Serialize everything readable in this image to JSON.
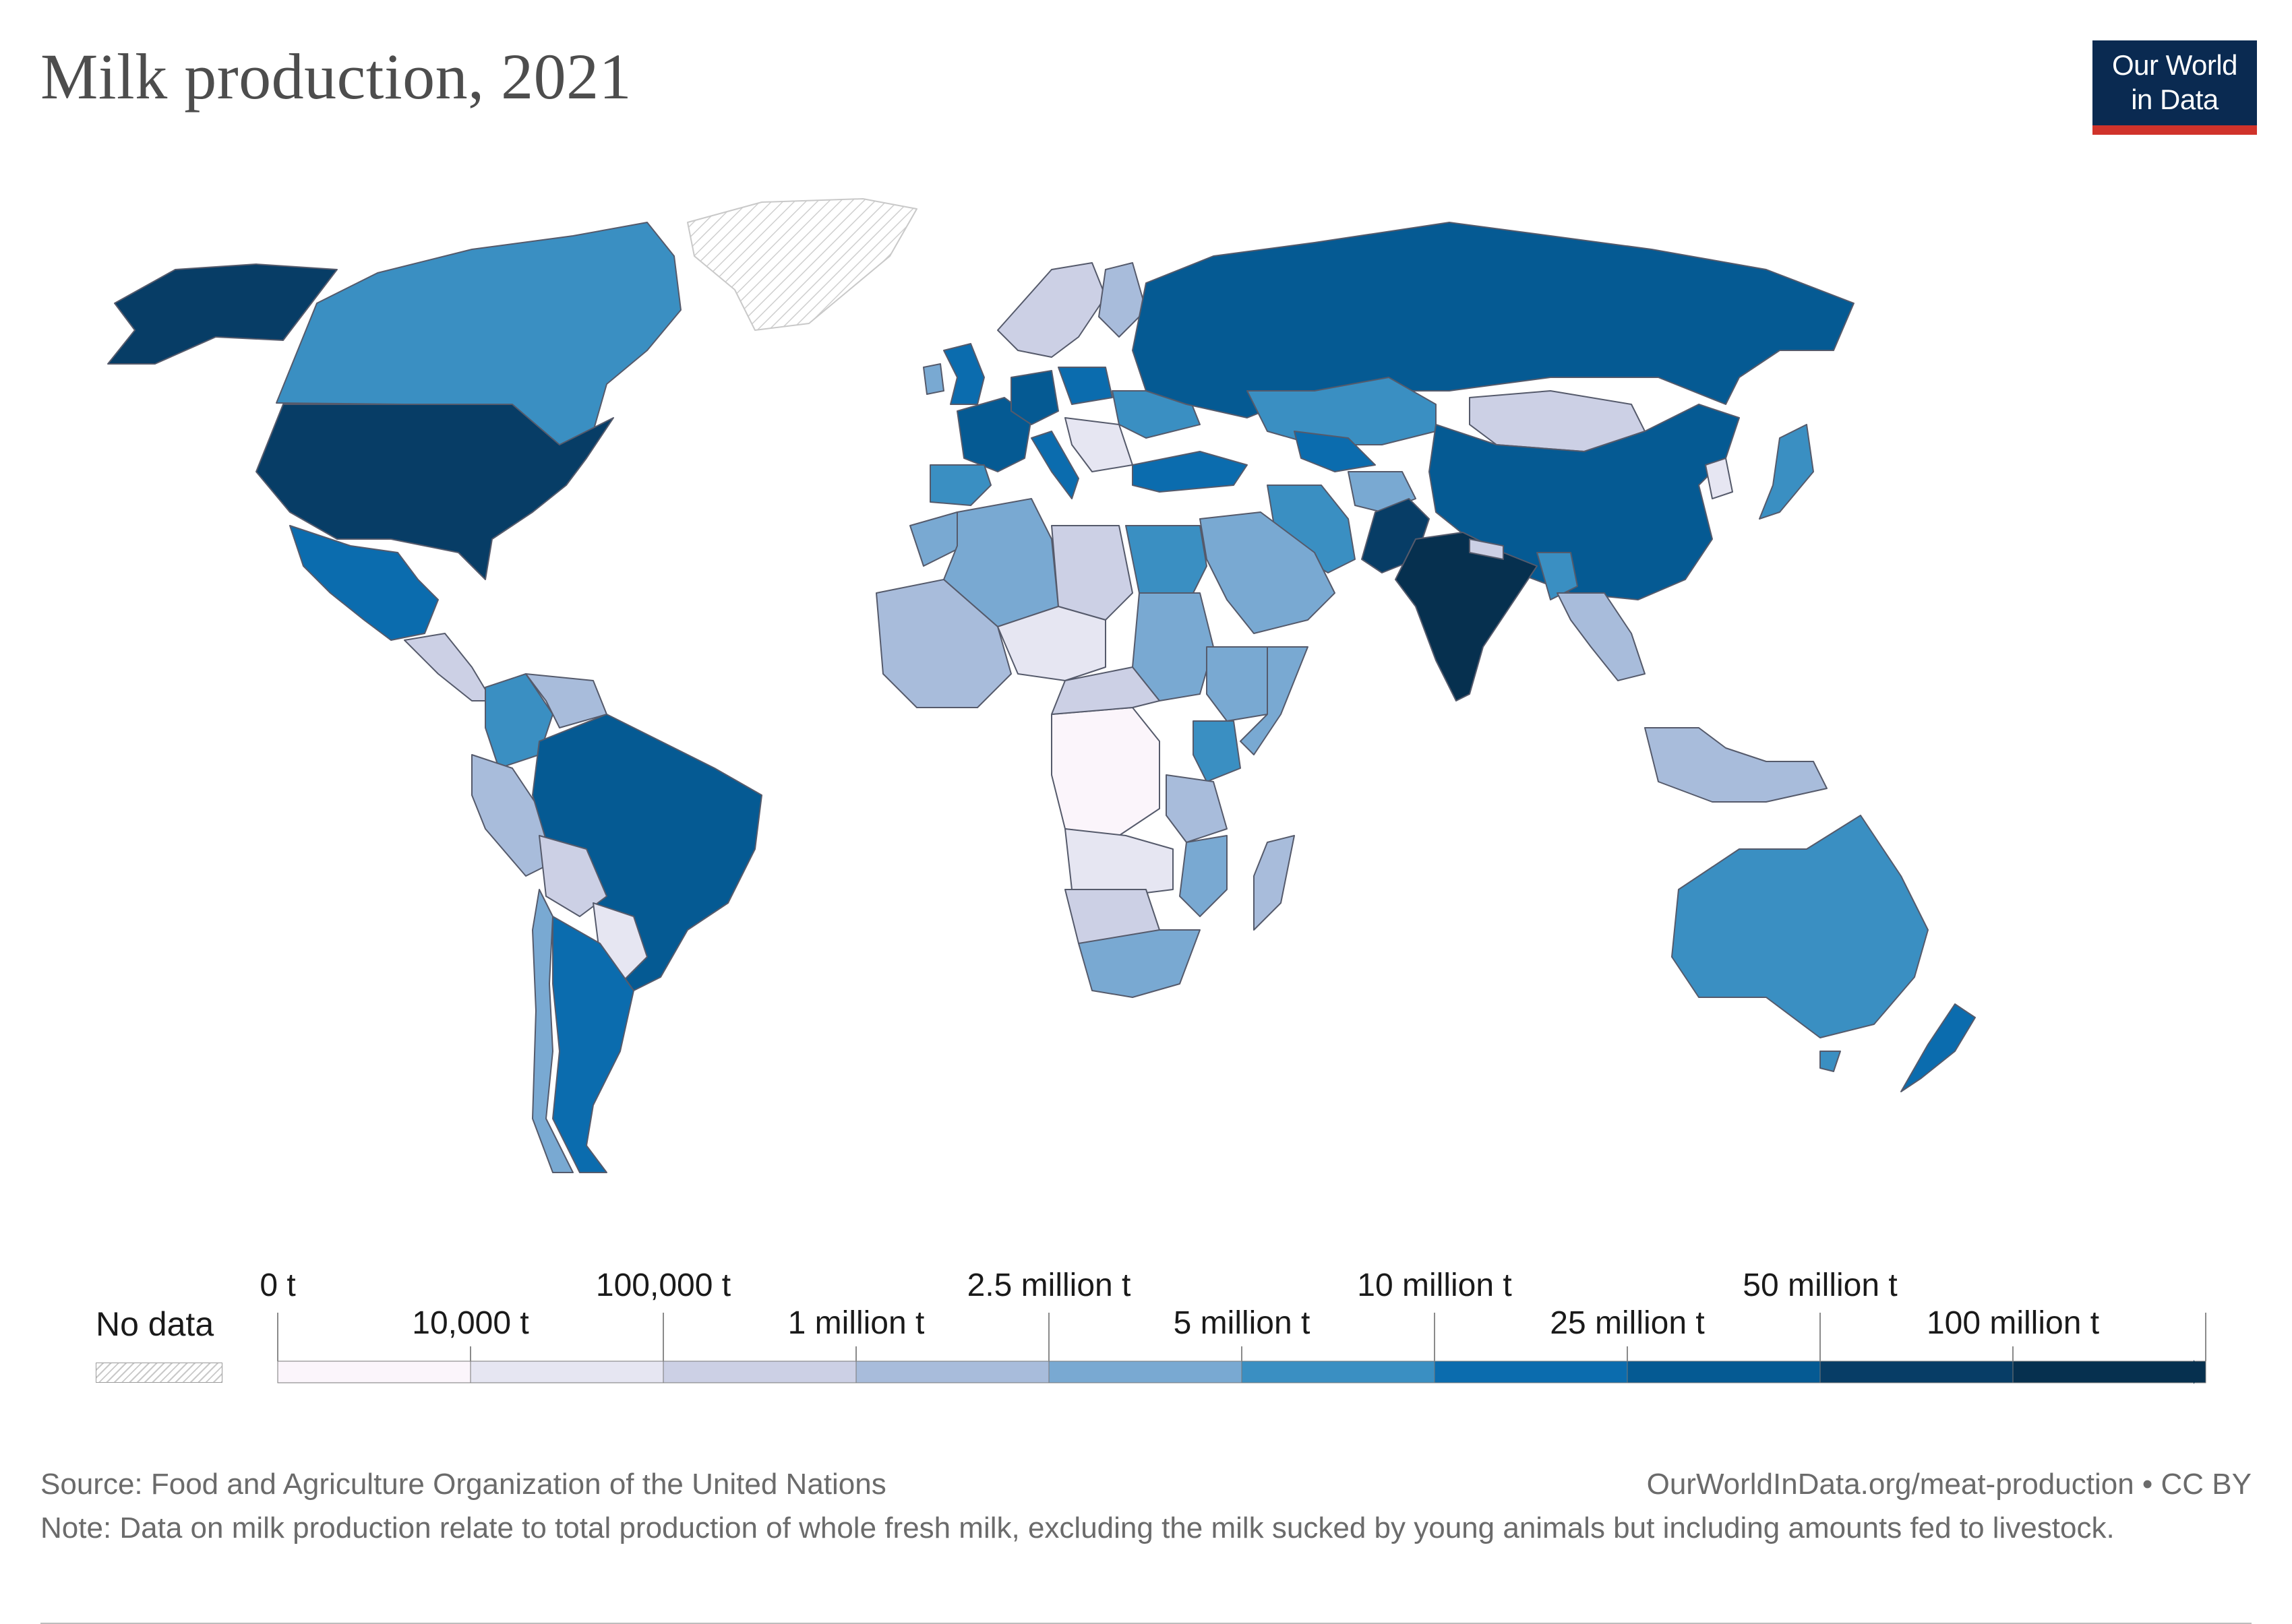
{
  "title": "Milk production, 2021",
  "logo": {
    "line1": "Our World",
    "line2": "in Data"
  },
  "legend": {
    "no_data_label": "No data",
    "upper_labels": [
      "0 t",
      "100,000 t",
      "2.5 million t",
      "10 million t",
      "50 million t"
    ],
    "lower_labels": [
      "10,000 t",
      "1 million t",
      "5 million t",
      "25 million t",
      "100 million t"
    ],
    "bins": [
      "#fbf5fb",
      "#e6e6f2",
      "#ccd0e5",
      "#a8bcdb",
      "#79a9d2",
      "#3a8fc2",
      "#0b6cae",
      "#055a93",
      "#073d66",
      "#06304f"
    ]
  },
  "source": "Source: Food and Agriculture Organization of the United Nations",
  "url": "OurWorldInData.org/meat-production • CC BY",
  "note": "Note: Data on milk production relate to total production of whole fresh milk, excluding the milk sucked by young animals but including amounts fed to livestock.",
  "map_data": {
    "United States": "50 million t – 100 million t",
    "Canada": "5 million t – 10 million t",
    "Alaska (US)": "50 million t – 100 million t",
    "Greenland": "No data",
    "Mexico": "10 million t – 25 million t",
    "Brazil": "25 million t – 50 million t",
    "Argentina": "10 million t – 25 million t",
    "Colombia": "5 million t – 10 million t",
    "Russia": "25 million t – 50 million t",
    "China": "25 million t – 50 million t",
    "India": "100 million t",
    "Pakistan": "50 million t – 100 million t",
    "Australia": "5 million t – 10 million t",
    "New Zealand": "10 million t – 25 million t",
    "Turkey": "10 million t – 25 million t",
    "Iran": "5 million t – 10 million t",
    "Kazakhstan": "5 million t – 10 million t",
    "Mongolia": "100,000 t – 1 million t",
    "Egypt": "5 million t – 10 million t",
    "Kenya": "5 million t – 10 million t",
    "Sudan": "2.5 million t – 5 million t",
    "Ethiopia": "2.5 million t – 5 million t",
    "Saudi Arabia": "2.5 million t – 5 million t",
    "Algeria": "2.5 million t – 5 million t",
    "South Africa": "2.5 million t – 5 million t",
    "DR Congo": "0 t – 10,000 t",
    "Japan": "5 million t – 10 million t",
    "Indonesia": "1 million t – 2.5 million t",
    "Chile": "2.5 million t – 5 million t",
    "Bolivia": "100,000 t – 1 million t",
    "Peru": "1 million t – 2.5 million t",
    "Germany": "25 million t – 50 million t",
    "France": "25 million t – 50 million t",
    "United Kingdom": "10 million t – 25 million t",
    "Spain": "5 million t – 10 million t",
    "Italy": "10 million t – 25 million t",
    "Poland": "10 million t – 25 million t",
    "Ukraine": "5 million t – 10 million t",
    "Uzbekistan": "10 million t – 25 million t",
    "Bangladesh": "5 million t – 10 million t"
  }
}
